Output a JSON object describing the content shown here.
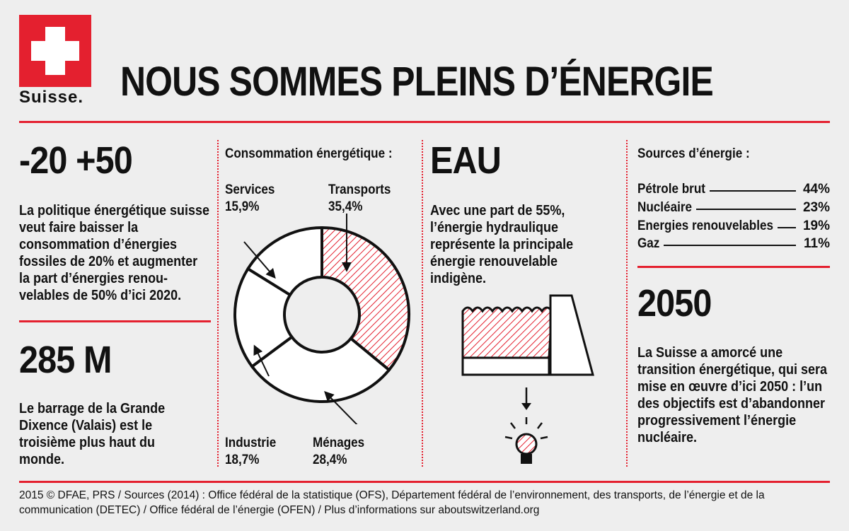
{
  "logo": {
    "text": "Suisse.",
    "brand_color": "#e4202f"
  },
  "title": "NOUS SOMMES PLEINS D’ÉNERGIE",
  "left": {
    "stat1": {
      "value": "-20 +50",
      "text": "La politique énergétique suisse veut faire baisser la consommation d’énergies fossiles de 20% et augmenter la part d’énergies renou­velables de 50% d’ici 2020."
    },
    "stat2": {
      "value": "285 M",
      "text": "Le barrage de la Grande Dixence (Valais) est le troisième plus haut du monde."
    }
  },
  "consumption": {
    "title": "Consommation énergétique :",
    "labels": {
      "services": {
        "name": "Services",
        "pct": "15,9%"
      },
      "transports": {
        "name": "Transports",
        "pct": "35,4%"
      },
      "industrie": {
        "name": "Industrie",
        "pct": "18,7%"
      },
      "menages": {
        "name": "Ménages",
        "pct": "28,4%"
      }
    }
  },
  "chart_data": {
    "type": "pie",
    "title": "Consommation énergétique :",
    "categories": [
      "Transports",
      "Ménages",
      "Industrie",
      "Services"
    ],
    "values": [
      35.4,
      28.4,
      18.7,
      15.9
    ],
    "highlight": "Transports",
    "highlight_color": "#e4202f"
  },
  "water": {
    "title": "EAU",
    "text": "Avec une part de 55%, l’énergie hydraulique repré­sente la principale énergie renouvelable indigène."
  },
  "sources": {
    "title": "Sources d’énergie :",
    "items": [
      {
        "name": "Pétrole brut",
        "value": "44%"
      },
      {
        "name": "Nucléaire",
        "value": "23%"
      },
      {
        "name": "Energies renouvelables",
        "value": "19%"
      },
      {
        "name": "Gaz",
        "value": "11%"
      }
    ]
  },
  "future": {
    "value": "2050",
    "text": "La Suisse a amorcé une transition énergétique, qui sera mise en œuvre d’ici 2050 : l’un des objectifs est d’abandonner progressi­vement l’énergie nucléaire."
  },
  "footer": "2015 © DFAE, PRS / Sources (2014) : Office fédéral de la statistique (OFS), Département fédéral de l’environnement, des transports, de l’énergie et de la communication (DETEC) / Office fédéral de l’énergie (OFEN) / Plus d’informations sur aboutswitzerland.org"
}
